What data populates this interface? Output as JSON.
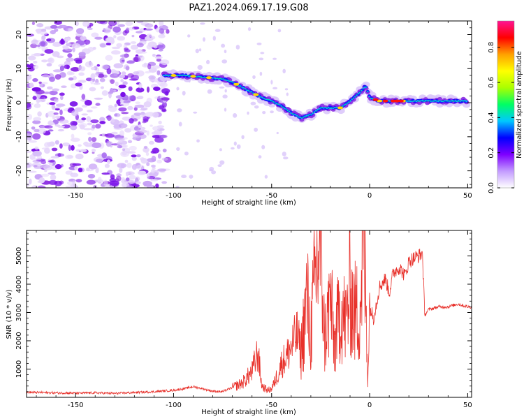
{
  "figure": {
    "title": "PAZ1.2024.069.17.19.G08"
  },
  "chart_data": [
    {
      "type": "heatmap",
      "xlabel": "Height of straight line (km)",
      "ylabel": "Frequency (Hz)",
      "xlim": [
        -175,
        52
      ],
      "ylim": [
        -25,
        24
      ],
      "xticks": [
        -150,
        -100,
        -50,
        0,
        50
      ],
      "yticks": [
        -20,
        -10,
        0,
        10,
        20
      ],
      "colorbar": {
        "label": "Normalized spectral amplitude",
        "range": [
          0,
          0.95
        ],
        "ticks": [
          0.0,
          0.2,
          0.4,
          0.6,
          0.8
        ],
        "colormap": [
          "#ffffff",
          "#c39bff",
          "#7e00ff",
          "#0000ff",
          "#00c8ff",
          "#00ff64",
          "#aaff00",
          "#ffff00",
          "#ffa000",
          "#ff0000",
          "#ff1493"
        ]
      },
      "ridge_trace": {
        "height_km": [
          -105,
          -95,
          -85,
          -75,
          -70,
          -65,
          -60,
          -55,
          -50,
          -45,
          -40,
          -35,
          -30,
          -25,
          -20,
          -15,
          -10,
          -5,
          -2,
          0,
          5,
          10,
          20,
          30,
          40,
          50
        ],
        "frequency_hz": [
          8,
          8,
          7.5,
          7,
          6,
          4.5,
          3,
          1.5,
          0.5,
          -1,
          -3,
          -4.5,
          -3.5,
          -1.5,
          -1.5,
          -1.5,
          0.5,
          3,
          5,
          1.5,
          0.5,
          0.5,
          0.5,
          0.5,
          0.5,
          0.5
        ]
      },
      "noise_region_km": [
        -175,
        -103
      ]
    },
    {
      "type": "line",
      "xlabel": "Height of straight line (km)",
      "ylabel": "SNR (10 * v/v)",
      "xlim": [
        -175,
        52
      ],
      "ylim": [
        0,
        5900
      ],
      "xticks": [
        -150,
        -100,
        -50,
        0,
        50
      ],
      "yticks": [
        1000,
        2000,
        3000,
        4000,
        5000
      ],
      "color": "#e8302a",
      "x": [
        -175,
        -160,
        -150,
        -140,
        -130,
        -120,
        -110,
        -100,
        -95,
        -90,
        -85,
        -80,
        -75,
        -70,
        -65,
        -60,
        -57,
        -55,
        -52,
        -50,
        -47,
        -45,
        -42,
        -40,
        -37,
        -35,
        -32,
        -30,
        -28,
        -25,
        -23,
        -20,
        -18,
        -15,
        -12,
        -10,
        -8,
        -5,
        -3,
        -1,
        0,
        2,
        5,
        8,
        10,
        12,
        15,
        18,
        20,
        22,
        25,
        27,
        28,
        30,
        35,
        40,
        45,
        50,
        52
      ],
      "y": [
        180,
        160,
        150,
        160,
        140,
        170,
        200,
        250,
        300,
        380,
        300,
        220,
        200,
        350,
        500,
        900,
        1600,
        400,
        250,
        300,
        800,
        1200,
        1500,
        1800,
        2200,
        1600,
        3500,
        2200,
        4000,
        5600,
        2000,
        3500,
        1800,
        3200,
        2600,
        3800,
        3000,
        3000,
        5900,
        800,
        3200,
        2800,
        3900,
        4200,
        3700,
        4400,
        4600,
        4300,
        4800,
        4900,
        5000,
        5100,
        2900,
        3100,
        3200,
        3200,
        3300,
        3200,
        3200
      ]
    }
  ]
}
